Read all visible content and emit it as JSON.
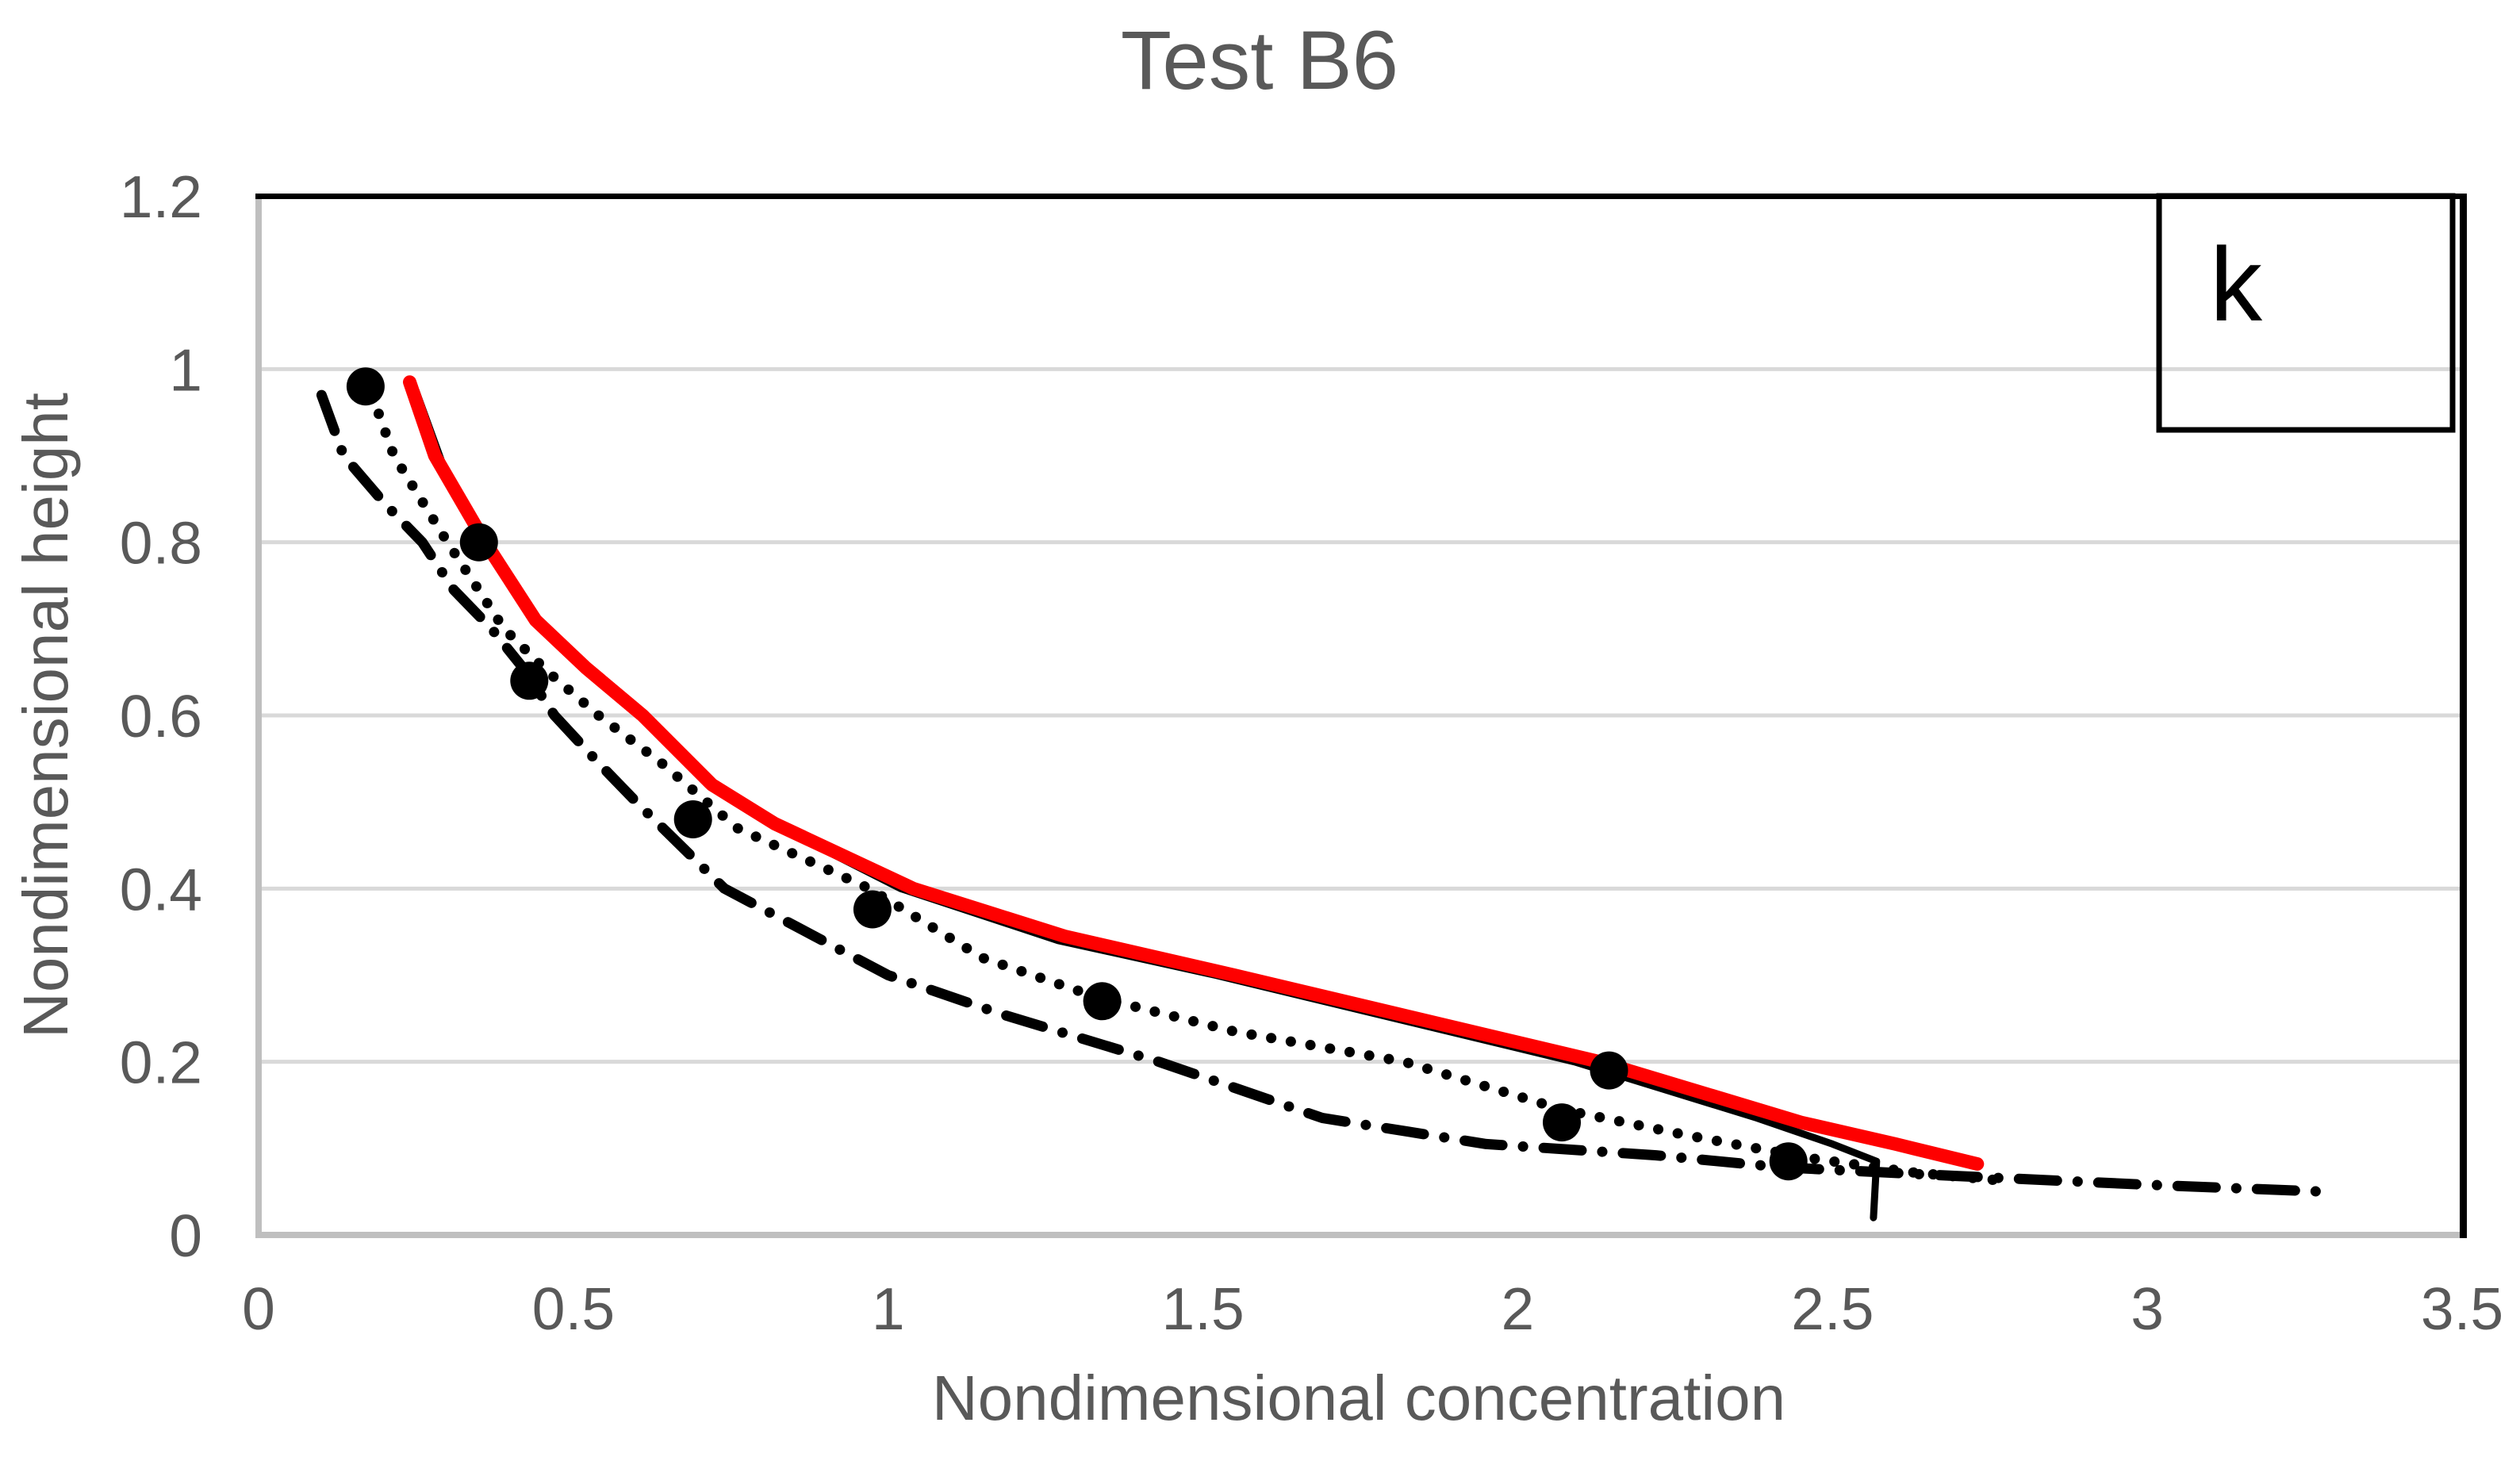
{
  "title": "Test B6",
  "legend": {
    "label": "k"
  },
  "colors": {
    "red_series": "#fe0000",
    "black_series": "#000000",
    "gridline": "#d9d9d9",
    "axis_line": "#bfbfbf",
    "plot_border": "#000000",
    "text": "#595959",
    "background": "#ffffff"
  },
  "chart_data": {
    "type": "line",
    "title": "Test B6",
    "xlabel": "Nondimensional concentration",
    "ylabel": "Nondimensional height",
    "xlim": [
      0,
      3.5
    ],
    "ylim": [
      0,
      1.2
    ],
    "x_ticks": [
      "0",
      "0.5",
      "1",
      "1.5",
      "2",
      "2.5",
      "3",
      "3.5"
    ],
    "x_tick_values": [
      0,
      0.5,
      1,
      1.5,
      2,
      2.5,
      3,
      3.5
    ],
    "y_ticks": [
      "0",
      "0.2",
      "0.4",
      "0.6",
      "0.8",
      "1",
      "1.2"
    ],
    "y_tick_values": [
      0,
      0.2,
      0.4,
      0.6,
      0.8,
      1,
      1.2
    ],
    "grid": "horizontal",
    "legend_position": "top-right-inside",
    "legend_label": "k",
    "series": [
      {
        "name": "black-solid-model",
        "kind": "line",
        "style": "solid",
        "color": "#000000",
        "width": 9,
        "points": [
          [
            0.25,
            0.975
          ],
          [
            0.295,
            0.885
          ],
          [
            0.37,
            0.79
          ],
          [
            0.45,
            0.7
          ],
          [
            0.53,
            0.645
          ],
          [
            0.62,
            0.59
          ],
          [
            0.73,
            0.515
          ],
          [
            0.83,
            0.47
          ],
          [
            1.02,
            0.4
          ],
          [
            1.27,
            0.34
          ],
          [
            1.52,
            0.3
          ],
          [
            2.09,
            0.2
          ],
          [
            2.38,
            0.135
          ],
          [
            2.5,
            0.105
          ],
          [
            2.57,
            0.085
          ],
          [
            2.565,
            0.02
          ]
        ]
      },
      {
        "name": "red-solid-model",
        "kind": "line",
        "style": "solid",
        "color": "#fe0000",
        "width": 17,
        "points": [
          [
            0.24,
            0.985
          ],
          [
            0.28,
            0.9
          ],
          [
            0.36,
            0.8
          ],
          [
            0.44,
            0.71
          ],
          [
            0.52,
            0.655
          ],
          [
            0.61,
            0.6
          ],
          [
            0.72,
            0.52
          ],
          [
            0.82,
            0.475
          ],
          [
            1.04,
            0.4
          ],
          [
            1.28,
            0.345
          ],
          [
            1.55,
            0.3
          ],
          [
            2.13,
            0.2
          ],
          [
            2.45,
            0.13
          ],
          [
            2.6,
            0.105
          ],
          [
            2.73,
            0.082
          ]
        ]
      },
      {
        "name": "dotted-model",
        "kind": "line",
        "style": "dotted",
        "color": "#000000",
        "width": 13,
        "points": [
          [
            0.18,
            0.97
          ],
          [
            0.215,
            0.9
          ],
          [
            0.3,
            0.8
          ],
          [
            0.39,
            0.7
          ],
          [
            0.46,
            0.65
          ],
          [
            0.54,
            0.6
          ],
          [
            0.64,
            0.545
          ],
          [
            0.76,
            0.47
          ],
          [
            0.97,
            0.4
          ],
          [
            1.15,
            0.32
          ],
          [
            1.33,
            0.275
          ],
          [
            1.55,
            0.235
          ],
          [
            1.82,
            0.2
          ],
          [
            2.07,
            0.145
          ],
          [
            2.27,
            0.115
          ],
          [
            2.46,
            0.089
          ],
          [
            2.63,
            0.072
          ],
          [
            2.78,
            0.062
          ]
        ]
      },
      {
        "name": "dash-dot-model",
        "kind": "line",
        "style": "dashdot",
        "color": "#000000",
        "width": 13,
        "points": [
          [
            0.1,
            0.97
          ],
          [
            0.135,
            0.9
          ],
          [
            0.2,
            0.845
          ],
          [
            0.26,
            0.8
          ],
          [
            0.31,
            0.745
          ],
          [
            0.37,
            0.7
          ],
          [
            0.42,
            0.655
          ],
          [
            0.47,
            0.6
          ],
          [
            0.54,
            0.545
          ],
          [
            0.6,
            0.5
          ],
          [
            0.74,
            0.4
          ],
          [
            1.0,
            0.3
          ],
          [
            1.18,
            0.255
          ],
          [
            1.43,
            0.2
          ],
          [
            1.69,
            0.135
          ],
          [
            1.95,
            0.105
          ],
          [
            2.22,
            0.092
          ],
          [
            2.42,
            0.078
          ],
          [
            2.7,
            0.068
          ],
          [
            3.0,
            0.058
          ],
          [
            3.28,
            0.05
          ]
        ]
      },
      {
        "name": "measurement-points",
        "kind": "scatter",
        "marker": "circle",
        "color": "#000000",
        "marker_diameter": 48,
        "points": [
          [
            0.17,
            0.98
          ],
          [
            0.35,
            0.8
          ],
          [
            0.43,
            0.64
          ],
          [
            0.69,
            0.48
          ],
          [
            0.975,
            0.376
          ],
          [
            1.34,
            0.27
          ],
          [
            2.145,
            0.19
          ],
          [
            2.07,
            0.13
          ],
          [
            2.43,
            0.085
          ]
        ]
      }
    ]
  }
}
